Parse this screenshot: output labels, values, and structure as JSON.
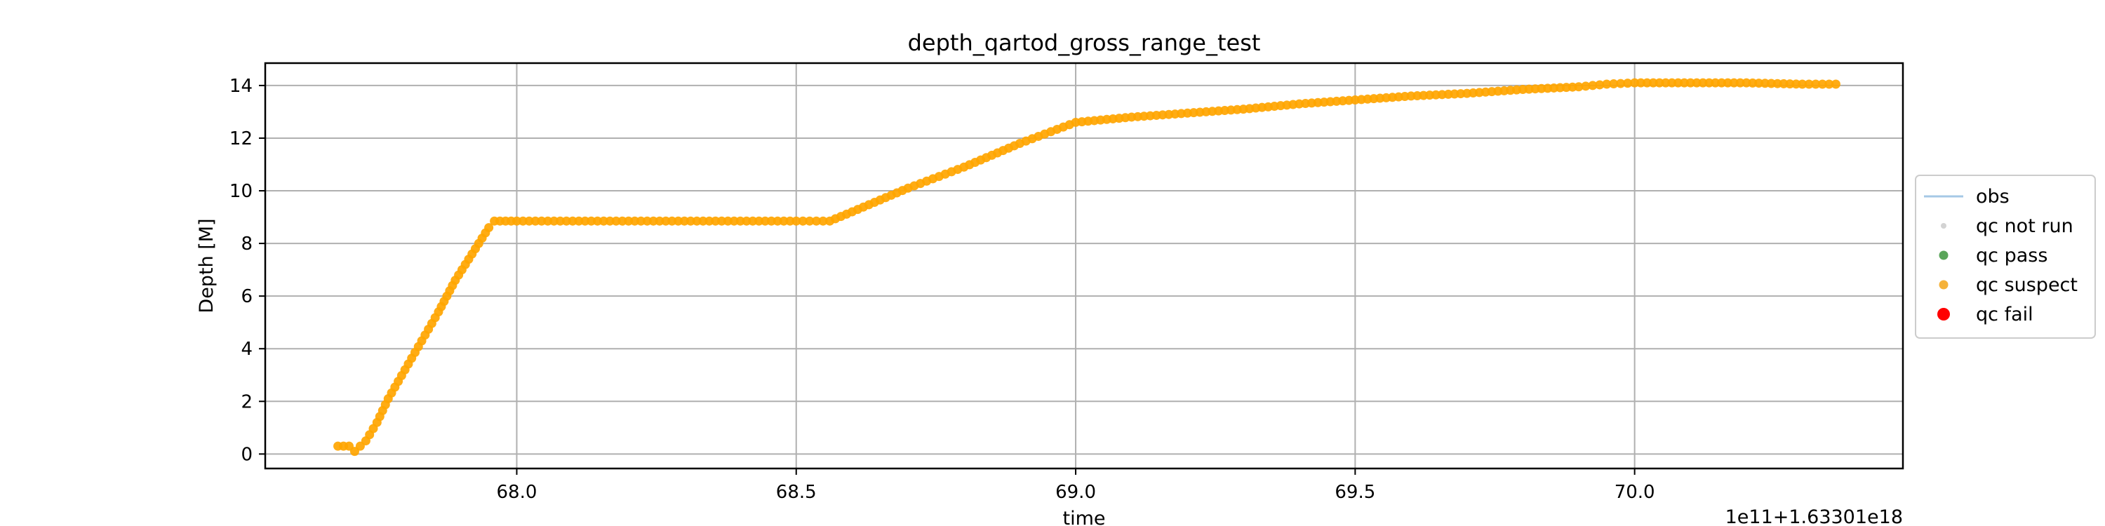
{
  "chart_data": {
    "type": "scatter",
    "title": "depth_qartod_gross_range_test",
    "xlabel": "time",
    "ylabel": "Depth [M]",
    "x_offset_text": "1e11+1.63301e18",
    "xlim": [
      67.55,
      70.48
    ],
    "ylim": [
      -0.55,
      14.85
    ],
    "xticks": [
      68.0,
      68.5,
      69.0,
      69.5,
      70.0
    ],
    "xtick_labels": [
      "68.0",
      "68.5",
      "69.0",
      "69.5",
      "70.0"
    ],
    "yticks": [
      0,
      2,
      4,
      6,
      8,
      10,
      12,
      14
    ],
    "ytick_labels": [
      "0",
      "2",
      "4",
      "6",
      "8",
      "10",
      "12",
      "14"
    ],
    "grid": true,
    "legend_position": "center right, outside plot",
    "legend": [
      {
        "label": "obs",
        "kind": "line",
        "color": "#a6c8e6"
      },
      {
        "label": "qc not run",
        "kind": "point",
        "color": "#d3d3d3"
      },
      {
        "label": "qc pass",
        "kind": "point",
        "color": "#5aa55a"
      },
      {
        "label": "qc suspect",
        "kind": "point",
        "color": "#f5b23a"
      },
      {
        "label": "qc fail",
        "kind": "point",
        "color": "#ff0000"
      }
    ],
    "series": [
      {
        "name": "qc suspect",
        "color": "#ffa500",
        "x": [
          67.68,
          67.7,
          67.71,
          67.73,
          67.75,
          67.77,
          67.8,
          67.83,
          67.86,
          67.89,
          67.92,
          67.95,
          67.96,
          68.0,
          68.1,
          68.2,
          68.3,
          68.4,
          68.5,
          68.56,
          68.6,
          68.7,
          68.8,
          68.9,
          69.0,
          69.1,
          69.2,
          69.3,
          69.4,
          69.5,
          69.6,
          69.7,
          69.8,
          69.9,
          69.95,
          70.0,
          70.1,
          70.2,
          70.3,
          70.36
        ],
        "y": [
          0.3,
          0.3,
          0.1,
          0.5,
          1.2,
          2.1,
          3.2,
          4.3,
          5.4,
          6.6,
          7.6,
          8.6,
          8.85,
          8.85,
          8.85,
          8.85,
          8.85,
          8.85,
          8.85,
          8.85,
          9.2,
          10.1,
          10.9,
          11.8,
          12.6,
          12.8,
          12.95,
          13.1,
          13.3,
          13.45,
          13.6,
          13.7,
          13.85,
          13.95,
          14.05,
          14.1,
          14.1,
          14.1,
          14.05,
          14.05
        ]
      }
    ]
  }
}
